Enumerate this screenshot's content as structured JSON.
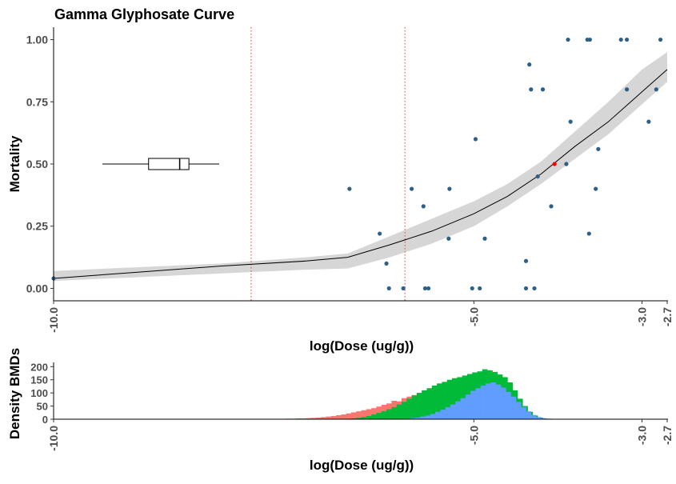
{
  "chart_data": [
    {
      "type": "scatter",
      "title": "Gamma Glyphosate Curve",
      "xlabel": "log(Dose (ug/g))",
      "ylabel": "Mortality",
      "xlim": [
        -10.0,
        -2.7
      ],
      "ylim": [
        -0.05,
        1.05
      ],
      "x_ticks": [
        -10.0,
        -5.0,
        -3.0,
        -2.7
      ],
      "x_tick_labels": [
        "-10.0",
        "-5.0",
        "-3.0",
        "-2.7"
      ],
      "y_ticks": [
        0,
        0.25,
        0.5,
        0.75,
        1.0
      ],
      "y_tick_labels": [
        "0.00",
        "0.25",
        "0.50",
        "0.75",
        "1.00"
      ],
      "grid": false,
      "point_color": "#2e5f86",
      "highlight_color": "#ff0000",
      "points": [
        {
          "x": -6.48,
          "y": 0.4
        },
        {
          "x": -6.12,
          "y": 0.22
        },
        {
          "x": -6.04,
          "y": 0.1
        },
        {
          "x": -6.01,
          "y": 0.0
        },
        {
          "x": -5.84,
          "y": 0.0
        },
        {
          "x": -5.74,
          "y": 0.4
        },
        {
          "x": -5.58,
          "y": 0.0
        },
        {
          "x": -5.54,
          "y": 0.0
        },
        {
          "x": -5.6,
          "y": 0.33
        },
        {
          "x": -5.29,
          "y": 0.4
        },
        {
          "x": -5.3,
          "y": 0.2
        },
        {
          "x": -5.02,
          "y": 0.0
        },
        {
          "x": -4.98,
          "y": 0.6
        },
        {
          "x": -4.93,
          "y": 0.0
        },
        {
          "x": -4.87,
          "y": 0.2
        },
        {
          "x": -4.38,
          "y": 0.0
        },
        {
          "x": -4.38,
          "y": 0.11
        },
        {
          "x": -4.32,
          "y": 0.8
        },
        {
          "x": -4.34,
          "y": 0.9
        },
        {
          "x": -4.28,
          "y": 0.0
        },
        {
          "x": -4.24,
          "y": 0.45
        },
        {
          "x": -4.18,
          "y": 0.8
        },
        {
          "x": -4.08,
          "y": 0.33
        },
        {
          "x": -3.9,
          "y": 0.5
        },
        {
          "x": -3.85,
          "y": 0.67
        },
        {
          "x": -3.88,
          "y": 1.0
        },
        {
          "x": -3.65,
          "y": 1.0
        },
        {
          "x": -3.62,
          "y": 1.0
        },
        {
          "x": -3.63,
          "y": 0.22
        },
        {
          "x": -3.55,
          "y": 0.4
        },
        {
          "x": -3.52,
          "y": 0.56
        },
        {
          "x": -3.25,
          "y": 1.0
        },
        {
          "x": -3.18,
          "y": 0.8
        },
        {
          "x": -3.18,
          "y": 1.0
        },
        {
          "x": -2.92,
          "y": 0.67
        },
        {
          "x": -2.83,
          "y": 0.8
        },
        {
          "x": -2.78,
          "y": 1.0
        },
        {
          "x": -10.0,
          "y": 0.04
        }
      ],
      "highlight_point": {
        "x": -4.04,
        "y": 0.5
      },
      "fit_curve": {
        "x": [
          -10.0,
          -9.0,
          -8.0,
          -7.0,
          -6.5,
          -6.0,
          -5.5,
          -5.0,
          -4.6,
          -4.2,
          -3.8,
          -3.4,
          -3.0,
          -2.7
        ],
        "y": [
          0.04,
          0.065,
          0.09,
          0.11,
          0.125,
          0.175,
          0.23,
          0.3,
          0.37,
          0.46,
          0.57,
          0.67,
          0.79,
          0.88
        ],
        "lower": [
          0.03,
          0.045,
          0.06,
          0.075,
          0.08,
          0.125,
          0.18,
          0.25,
          0.33,
          0.42,
          0.52,
          0.62,
          0.74,
          0.83
        ],
        "upper": [
          0.07,
          0.085,
          0.1,
          0.125,
          0.14,
          0.21,
          0.28,
          0.35,
          0.42,
          0.51,
          0.63,
          0.75,
          0.88,
          0.95
        ]
      },
      "band_color": "#d6d6d6",
      "vlines": [
        -7.65,
        -5.82
      ],
      "vline_color": "#e0442a",
      "boxplot": {
        "y": 0.5,
        "min": -9.42,
        "q1": -8.87,
        "median": -8.5,
        "q3": -8.39,
        "max": -8.03
      }
    },
    {
      "type": "histogram",
      "xlabel": "log(Dose (ug/g))",
      "ylabel": "Density BMDs",
      "xlim": [
        -10.0,
        -2.7
      ],
      "ylim": [
        0,
        210
      ],
      "y_ticks": [
        0,
        50,
        100,
        150,
        200
      ],
      "y_tick_labels": [
        "0",
        "50",
        "100",
        "150",
        "200"
      ],
      "x_ticks": [
        -10.0,
        -5.0,
        -3.0,
        -2.7
      ],
      "x_tick_labels": [
        "-10.0",
        "-5.0",
        "-3.0",
        "-2.7"
      ],
      "bin_width": 0.06,
      "series": [
        {
          "color": "#f8766d",
          "start": -7.36,
          "counts": [
            1,
            1,
            2,
            2,
            3,
            3,
            4,
            5,
            6,
            8,
            10,
            12,
            15,
            18,
            22,
            26,
            30,
            34,
            38,
            42,
            48,
            55,
            60,
            70,
            68,
            80,
            86,
            92,
            100,
            108,
            112,
            120,
            126,
            130,
            128,
            138,
            140,
            152,
            146,
            130,
            120,
            100,
            80,
            56,
            36,
            20,
            10,
            5,
            2
          ]
        },
        {
          "color": "#00ba38",
          "start": -6.52,
          "counts": [
            2,
            3,
            5,
            8,
            12,
            18,
            24,
            30,
            38,
            46,
            56,
            66,
            78,
            90,
            100,
            110,
            118,
            128,
            136,
            142,
            150,
            156,
            160,
            166,
            172,
            178,
            182,
            190,
            186,
            180,
            170,
            160,
            140,
            110,
            78,
            50,
            28,
            14,
            6,
            2
          ]
        },
        {
          "color": "#619cff",
          "start": -5.82,
          "counts": [
            2,
            4,
            6,
            10,
            14,
            20,
            28,
            36,
            46,
            56,
            68,
            80,
            94,
            108,
            118,
            128,
            136,
            140,
            132,
            120,
            104,
            86,
            66,
            46,
            30,
            16,
            8,
            4,
            2,
            1
          ]
        }
      ]
    }
  ]
}
